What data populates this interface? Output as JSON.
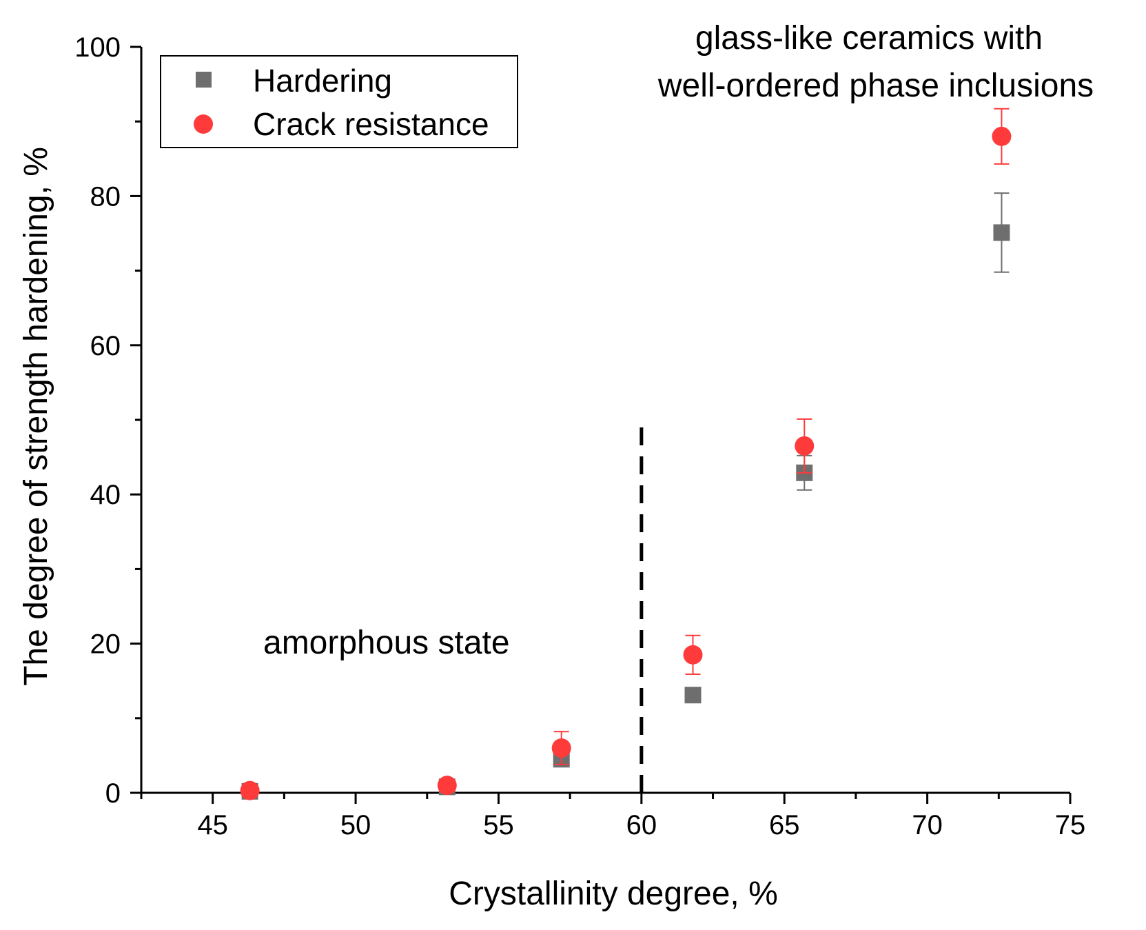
{
  "chart_data": {
    "type": "scatter",
    "title": "",
    "xlabel": "Crystallinity degree, %",
    "ylabel": "The degree of strength hardening, %",
    "xlim": [
      42.5,
      75
    ],
    "ylim": [
      0,
      100
    ],
    "x_ticks": [
      "45",
      "50",
      "55",
      "60",
      "65",
      "70",
      "75"
    ],
    "y_ticks": [
      "0",
      "20",
      "40",
      "60",
      "80",
      "100"
    ],
    "legend_position": "top-left",
    "series": [
      {
        "name": "Hardering",
        "marker": "square",
        "color": "#6e6e6e",
        "points": [
          {
            "x": 46.3,
            "y": 0.2,
            "err": 0.2
          },
          {
            "x": 53.2,
            "y": 0.8,
            "err": 0.3
          },
          {
            "x": 57.2,
            "y": 4.5,
            "err": 0.8
          },
          {
            "x": 61.8,
            "y": 13.1,
            "err": 0.6
          },
          {
            "x": 65.7,
            "y": 42.9,
            "err": 2.3
          },
          {
            "x": 72.6,
            "y": 75.1,
            "err": 5.3
          }
        ]
      },
      {
        "name": "Crack resistance",
        "marker": "circle",
        "color": "#ff3a3a",
        "points": [
          {
            "x": 46.3,
            "y": 0.3,
            "err": 0.3
          },
          {
            "x": 53.2,
            "y": 1.0,
            "err": 0.3
          },
          {
            "x": 57.2,
            "y": 6.0,
            "err": 2.2
          },
          {
            "x": 61.8,
            "y": 18.5,
            "err": 2.6
          },
          {
            "x": 65.7,
            "y": 46.5,
            "err": 3.6
          },
          {
            "x": 72.6,
            "y": 88.0,
            "err": 3.7
          }
        ]
      }
    ],
    "reference_line": {
      "x": 60,
      "y_max": 49,
      "style": "dashed"
    },
    "annotations": {
      "amorphous": "amorphous state",
      "ceramics_line1": "glass-like ceramics with",
      "ceramics_line2": "well-ordered phase inclusions"
    }
  }
}
